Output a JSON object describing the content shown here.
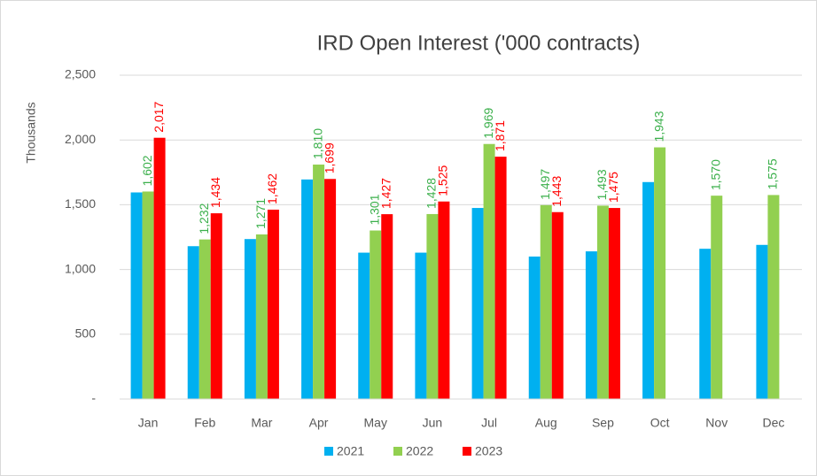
{
  "chart_data": {
    "type": "bar",
    "title": "IRD Open Interest ('000 contracts)",
    "y_label": "Thousands",
    "categories": [
      "Jan",
      "Feb",
      "Mar",
      "Apr",
      "May",
      "Jun",
      "Jul",
      "Aug",
      "Sep",
      "Oct",
      "Nov",
      "Dec"
    ],
    "series": [
      {
        "name": "2021",
        "color": "#00b0f0",
        "values": [
          1595,
          1180,
          1235,
          1695,
          1130,
          1130,
          1475,
          1100,
          1140,
          1675,
          1160,
          1190
        ]
      },
      {
        "name": "2022",
        "color": "#92d050",
        "values": [
          1602,
          1232,
          1271,
          1810,
          1301,
          1428,
          1969,
          1497,
          1493,
          1943,
          1570,
          1575
        ],
        "value_labels": [
          "1,602",
          "1,232",
          "1,271",
          "1,810",
          "1,301",
          "1,428",
          "1,969",
          "1,497",
          "1,493",
          "1,943",
          "1,570",
          "1,575"
        ]
      },
      {
        "name": "2023",
        "color": "#ff0000",
        "values": [
          2017,
          1434,
          1462,
          1699,
          1427,
          1525,
          1871,
          1443,
          1475,
          null,
          null,
          null
        ],
        "value_labels": [
          "2,017",
          "1,434",
          "1,462",
          "1,699",
          "1,427",
          "1,525",
          "1,871",
          "1,443",
          "1,475",
          null,
          null,
          null
        ]
      }
    ],
    "ylim": [
      0,
      2500
    ],
    "yticks": [
      {
        "value": 0,
        "label": "-"
      },
      500,
      {
        "value": 1000,
        "label": "1,000"
      },
      {
        "value": 1500,
        "label": "1,500"
      },
      {
        "value": 2000,
        "label": "2,000"
      },
      {
        "value": 2500,
        "label": "2,500"
      }
    ],
    "grid": true,
    "legend": "bottom"
  }
}
